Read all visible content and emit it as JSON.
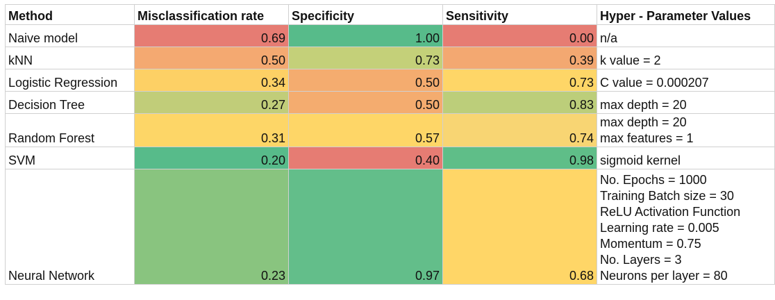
{
  "headers": [
    "Method",
    "Misclassification rate",
    "Specificity",
    "Sensitivity",
    "Hyper - Parameter Values"
  ],
  "rows": [
    {
      "method": "Naive model",
      "misclassification": "0.69",
      "misclassification_color": "#e67c73",
      "specificity": "1.00",
      "specificity_color": "#57bb8a",
      "sensitivity": "0.00",
      "sensitivity_color": "#e67c73",
      "params": [
        "n/a"
      ]
    },
    {
      "method": "kNN",
      "misclassification": "0.50",
      "misclassification_color": "#f4a971",
      "specificity": "0.73",
      "specificity_color": "#c4d079",
      "sensitivity": "0.39",
      "sensitivity_color": "#f3a871",
      "params": [
        "k value = 2"
      ]
    },
    {
      "method": "Logistic Regression",
      "misclassification": "0.34",
      "misclassification_color": "#fdd065",
      "specificity": "0.50",
      "specificity_color": "#f4ac6f",
      "sensitivity": "0.73",
      "sensitivity_color": "#fed667",
      "params": [
        "C value = 0.000207"
      ]
    },
    {
      "method": "Decision Tree",
      "misclassification": "0.27",
      "misclassification_color": "#c1cd79",
      "specificity": "0.50",
      "specificity_color": "#f4ac6f",
      "sensitivity": "0.83",
      "sensitivity_color": "#bcce7a",
      "params": [
        "max depth = 20"
      ]
    },
    {
      "method": "Random Forest",
      "misclassification": "0.31",
      "misclassification_color": "#fdd667",
      "specificity": "0.57",
      "specificity_color": "#fed667",
      "sensitivity": "0.74",
      "sensitivity_color": "#f8d573",
      "params": [
        "max depth = 20",
        "max features = 1"
      ]
    },
    {
      "method": "SVM",
      "misclassification": "0.20",
      "misclassification_color": "#57bb8a",
      "specificity": "0.40",
      "specificity_color": "#e67c73",
      "sensitivity": "0.98",
      "sensitivity_color": "#5fbe88",
      "params": [
        "sigmoid kernel"
      ]
    },
    {
      "method": "Neural Network",
      "misclassification": "0.23",
      "misclassification_color": "#89c47f",
      "specificity": "0.97",
      "specificity_color": "#63be8a",
      "sensitivity": "0.68",
      "sensitivity_color": "#ffd667",
      "params": [
        "No. Epochs = 1000",
        "Training Batch size = 30",
        "ReLU Activation Function",
        "Learning rate = 0.005",
        "Momentum = 0.75",
        "No. Layers = 3",
        "Neurons per layer = 80"
      ]
    }
  ]
}
